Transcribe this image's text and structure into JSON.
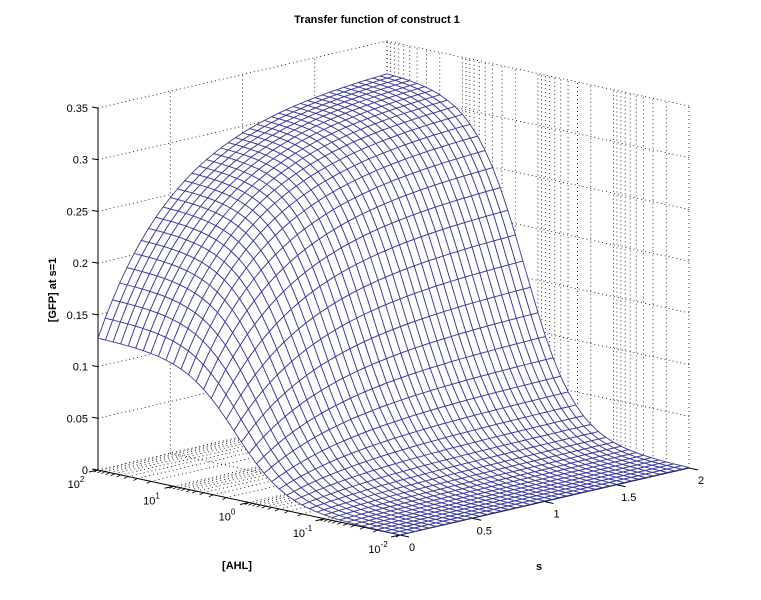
{
  "chart_data": {
    "type": "surface3d",
    "title": "Transfer function of construct 1",
    "xlabel": "[AHL]",
    "ylabel": "s",
    "zlabel": "[GFP] at s=1",
    "x_scale": "log",
    "x_ticks": [
      "10^2",
      "10^1",
      "10^0",
      "10^-1",
      "10^-2"
    ],
    "x_tick_values": [
      100,
      10,
      1,
      0.1,
      0.01
    ],
    "y_ticks": [
      "0",
      "0.5",
      "1",
      "1.5",
      "2"
    ],
    "y_tick_values": [
      0,
      0.5,
      1,
      1.5,
      2
    ],
    "z_ticks": [
      "0",
      "0.05",
      "0.1",
      "0.15",
      "0.2",
      "0.25",
      "0.3",
      "0.35"
    ],
    "z_tick_values": [
      0,
      0.05,
      0.1,
      0.15,
      0.2,
      0.25,
      0.3,
      0.35
    ],
    "xlim": [
      0.01,
      100
    ],
    "ylim": [
      0,
      2
    ],
    "zlim": [
      0,
      0.35
    ],
    "grid": true,
    "mesh": {
      "rows": 41,
      "cols": 41,
      "edge_color": "#3b3b9e",
      "face_color": "#ffffff"
    },
    "surface_samples": {
      "description": "approximate GFP values read from the mesh (AHL x s)",
      "AHL": [
        0.01,
        0.1,
        1,
        10,
        100
      ],
      "s": [
        0,
        0.5,
        1,
        1.5,
        2
      ],
      "GFP": [
        [
          0.0,
          0.0,
          0.0,
          0.0,
          0.0
        ],
        [
          0.002,
          0.006,
          0.01,
          0.012,
          0.013
        ],
        [
          0.03,
          0.09,
          0.14,
          0.165,
          0.175
        ],
        [
          0.105,
          0.215,
          0.275,
          0.3,
          0.31
        ],
        [
          0.125,
          0.24,
          0.295,
          0.315,
          0.322
        ]
      ]
    }
  },
  "colors": {
    "surface_edge": "#3b3b9e",
    "axis": "#000000",
    "grid": "#000000",
    "background": "#ffffff"
  }
}
